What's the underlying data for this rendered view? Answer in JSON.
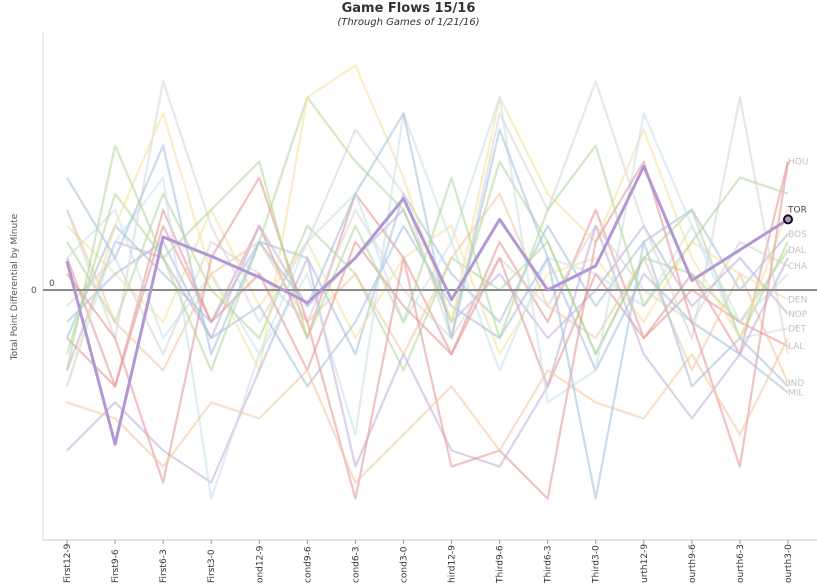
{
  "chart_data": {
    "type": "line",
    "title": "Game Flows 15/16",
    "subtitle": "(Through Games of 1/21/16)",
    "ylabel": "Total Point Differential by Minute",
    "zero_label": "0",
    "categories": [
      "First12-9",
      "First9-6",
      "First6-3",
      "First3-0",
      "ond12-9",
      "cond9-6",
      "cond6-3",
      "cond3-0",
      "hird12-9",
      "Third9-6",
      "Third6-3",
      "Third3-0",
      "urth12-9",
      "ourth9-6",
      "ourth6-3",
      "ourth3-0"
    ],
    "ylim": [
      -15,
      15
    ],
    "grid": false,
    "legend_position": "right (labels at line ends)",
    "highlight_color": "#b197d4",
    "palette": [
      "#e79a99",
      "#f4c9a4",
      "#a7c3dd",
      "#b5d99b",
      "#d7d7d7",
      "#f5e3a0",
      "#c4b2dc",
      "#c9e2e9"
    ],
    "series": [
      {
        "name": "HOU",
        "values": [
          2,
          -6,
          5,
          -2,
          4,
          -3,
          6,
          2,
          -4,
          3,
          -2,
          5,
          -3,
          1,
          -4,
          8
        ]
      },
      {
        "name": "TOR",
        "values": [
          1.8,
          -9.6,
          3.3,
          2.1,
          0.8,
          -0.8,
          2.0,
          5.7,
          -0.6,
          4.4,
          0,
          1.5,
          7.7,
          0.6,
          2.5,
          4.4
        ]
      },
      {
        "name": "BOS",
        "values": [
          -3,
          4,
          1,
          -2,
          3,
          2,
          -4,
          6,
          1,
          -2,
          4,
          -1,
          3,
          5,
          0,
          3.5
        ]
      },
      {
        "name": "DAL",
        "values": [
          3,
          -2,
          6,
          0,
          -3,
          4,
          1,
          -5,
          2,
          0,
          3,
          -4,
          2,
          1,
          -2,
          2.5
        ]
      },
      {
        "name": "CHA",
        "values": [
          -1,
          2,
          -4,
          3,
          1,
          -2,
          5,
          0,
          -3,
          2,
          -1,
          4,
          0,
          -2,
          3,
          1.5
        ]
      },
      {
        "name": "DEN",
        "values": [
          4,
          1,
          -2,
          5,
          -1,
          3,
          -3,
          2,
          4,
          -4,
          1,
          2,
          -2,
          3,
          1,
          -0.6
        ]
      },
      {
        "name": "NOP",
        "values": [
          -5,
          3,
          2,
          -3,
          4,
          -1,
          2,
          5,
          -2,
          1,
          -3,
          0,
          4,
          -1,
          2,
          -1.5
        ]
      },
      {
        "name": "DET",
        "values": [
          2,
          5,
          -3,
          1,
          -4,
          3,
          6,
          -2,
          3,
          -5,
          2,
          1,
          -1,
          4,
          -3,
          -2.4
        ]
      },
      {
        "name": "LAL",
        "values": [
          -3,
          -6,
          4,
          -2,
          1,
          -5,
          3,
          -1,
          -4,
          2,
          -6,
          1,
          -3,
          0,
          -2,
          -3.5
        ]
      },
      {
        "name": "IND",
        "values": [
          5,
          -2,
          -5,
          1,
          3,
          -2,
          1,
          -4,
          2,
          6,
          -1,
          -3,
          2,
          -5,
          1,
          -5.8
        ]
      },
      {
        "name": "MIL",
        "values": [
          -2,
          1,
          3,
          -3,
          -1,
          -6,
          -2,
          4,
          -1,
          -3,
          2,
          -5,
          1,
          -2,
          -4,
          -6.4
        ]
      },
      {
        "name": "",
        "values": [
          -4,
          6,
          2,
          -5,
          3,
          12,
          8,
          5,
          -2,
          8,
          3,
          -4,
          2,
          5,
          -3,
          3
        ]
      },
      {
        "name": "",
        "values": [
          5,
          -3,
          13,
          4,
          -2,
          3,
          10,
          6,
          -3,
          11,
          5,
          13,
          4,
          -3,
          12,
          -4
        ]
      },
      {
        "name": "",
        "values": [
          -6,
          4,
          11,
          1,
          -5,
          12,
          14,
          7,
          -2,
          12,
          6,
          3,
          10,
          2,
          -3,
          5
        ]
      },
      {
        "name": "",
        "values": [
          -10,
          -7,
          -10,
          -12,
          -5,
          2,
          -11,
          -4,
          -10,
          -11,
          -6,
          4,
          -4,
          -8,
          -4,
          2
        ]
      },
      {
        "name": "",
        "values": [
          -6,
          3,
          7,
          -13,
          -4,
          1,
          -9,
          11,
          3,
          12,
          -7,
          -5,
          11,
          4,
          -2,
          1
        ]
      },
      {
        "name": "",
        "values": [
          1,
          -3,
          -12,
          2,
          7,
          -2,
          -13,
          2,
          -11,
          -10,
          -13,
          3,
          8,
          -2,
          -11,
          8
        ]
      },
      {
        "name": "",
        "values": [
          -7,
          -8,
          -11,
          -7,
          -8,
          -5,
          -12,
          -9,
          -6,
          -10,
          -5,
          -7,
          -8,
          -4,
          -9,
          -3
        ]
      },
      {
        "name": "",
        "values": [
          7,
          2,
          9,
          -4,
          3,
          -1,
          6,
          11,
          -3,
          10,
          2,
          -13,
          3,
          -6,
          -3,
          -6
        ]
      },
      {
        "name": "",
        "values": [
          -5,
          9,
          2,
          5,
          8,
          -3,
          4,
          -2,
          7,
          -3,
          5,
          9,
          -1,
          3,
          7,
          6
        ]
      }
    ]
  }
}
